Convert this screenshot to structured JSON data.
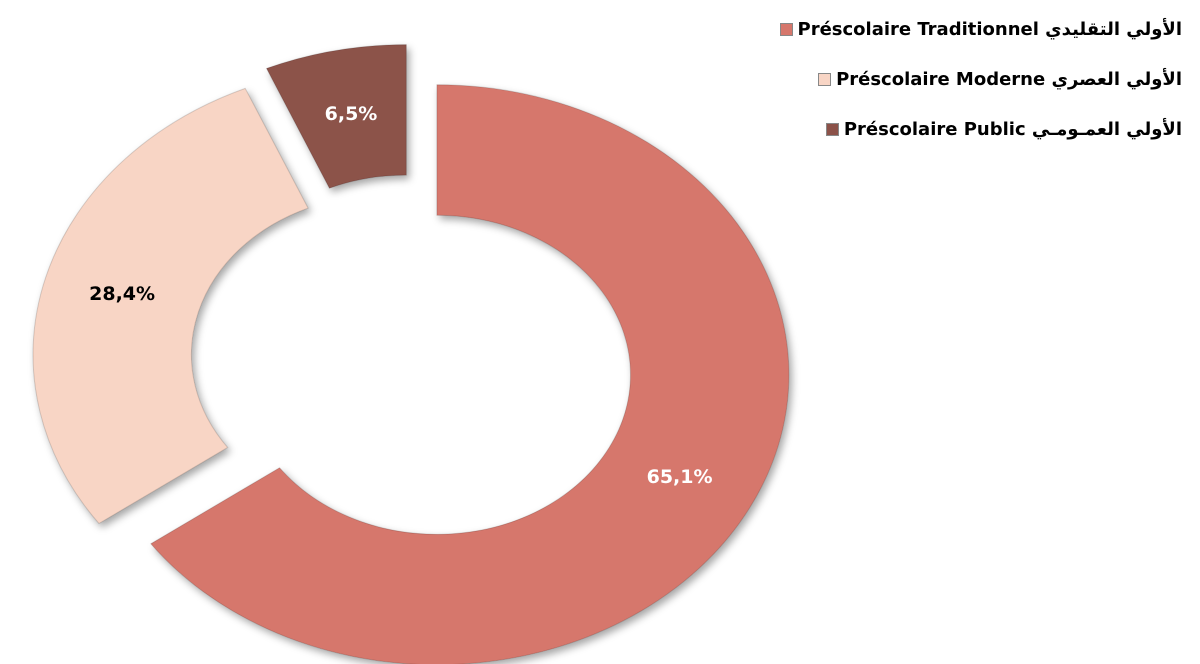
{
  "chart_data": {
    "type": "donut",
    "categories": [
      "الأولي التقليدي Préscolaire Traditionnel",
      "الأولي العصري Préscolaire Moderne",
      "الأولي العمـومـي Préscolaire Public"
    ],
    "values": [
      65.1,
      28.4,
      6.5
    ],
    "value_labels": [
      "65,1%",
      "28,4%",
      "6,5%"
    ],
    "colors": [
      "#d6776c",
      "#f8d5c5",
      "#8c5249"
    ],
    "label_colors": [
      "#ffffff",
      "#000000",
      "#ffffff"
    ],
    "legend": "top-right"
  }
}
